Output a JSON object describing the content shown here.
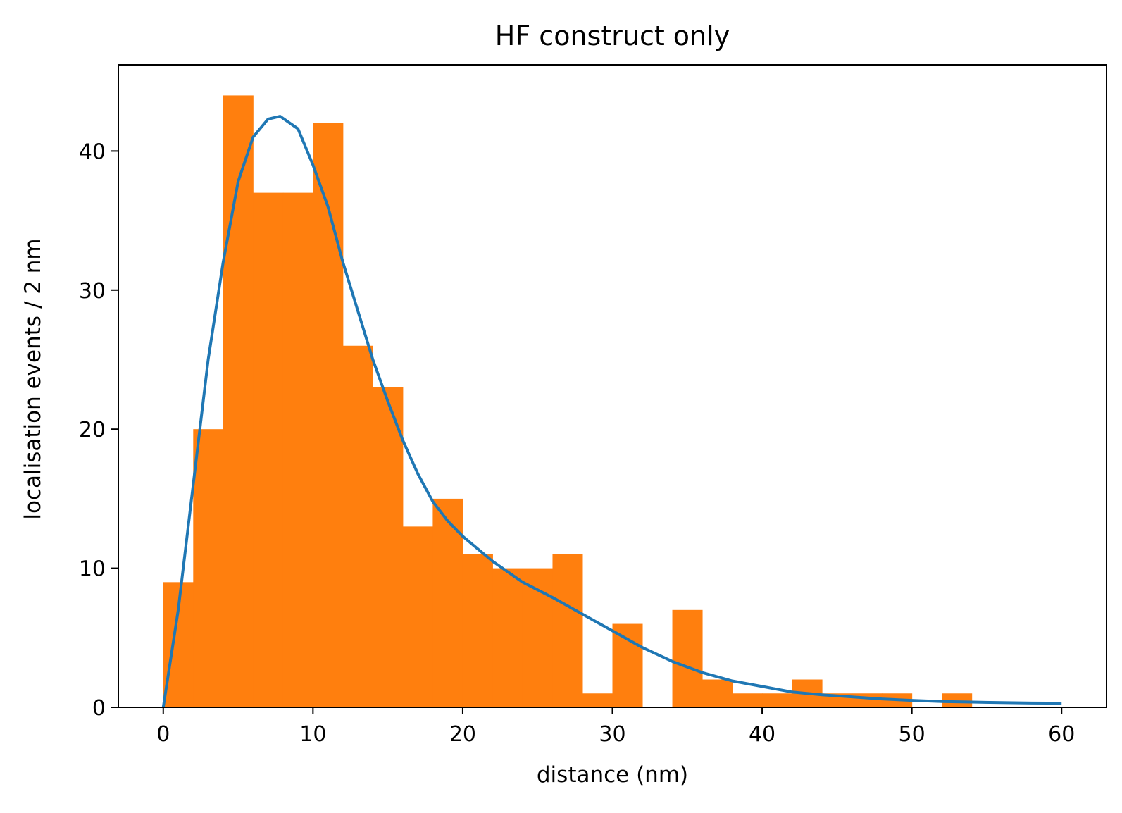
{
  "chart_data": {
    "type": "bar",
    "title": "HF construct only",
    "xlabel": "distance (nm)",
    "ylabel": "localisation events / 2 nm",
    "xlim": [
      -3,
      63
    ],
    "ylim": [
      0,
      46.2
    ],
    "xticks": [
      0,
      10,
      20,
      30,
      40,
      50,
      60
    ],
    "yticks": [
      0,
      10,
      20,
      30,
      40
    ],
    "bar_color": "#ff7f0e",
    "line_color": "#1f77b4",
    "bin_width": 2,
    "bins": [
      {
        "x0": 0,
        "value": 9
      },
      {
        "x0": 2,
        "value": 20
      },
      {
        "x0": 4,
        "value": 44
      },
      {
        "x0": 6,
        "value": 37
      },
      {
        "x0": 8,
        "value": 37
      },
      {
        "x0": 10,
        "value": 42
      },
      {
        "x0": 12,
        "value": 26
      },
      {
        "x0": 14,
        "value": 23
      },
      {
        "x0": 16,
        "value": 13
      },
      {
        "x0": 18,
        "value": 15
      },
      {
        "x0": 20,
        "value": 11
      },
      {
        "x0": 22,
        "value": 10
      },
      {
        "x0": 24,
        "value": 10
      },
      {
        "x0": 26,
        "value": 11
      },
      {
        "x0": 28,
        "value": 1
      },
      {
        "x0": 30,
        "value": 6
      },
      {
        "x0": 32,
        "value": 0
      },
      {
        "x0": 34,
        "value": 7
      },
      {
        "x0": 36,
        "value": 2
      },
      {
        "x0": 38,
        "value": 1
      },
      {
        "x0": 40,
        "value": 1
      },
      {
        "x0": 42,
        "value": 2
      },
      {
        "x0": 44,
        "value": 1
      },
      {
        "x0": 46,
        "value": 1
      },
      {
        "x0": 48,
        "value": 1
      },
      {
        "x0": 50,
        "value": 0
      },
      {
        "x0": 52,
        "value": 1
      }
    ],
    "fit_curve": {
      "x": [
        0,
        1,
        2,
        3,
        4,
        5,
        6,
        7,
        7.8,
        9,
        10,
        11,
        12,
        13,
        14,
        15,
        16,
        17,
        18,
        19,
        20,
        22,
        24,
        26,
        28,
        30,
        32,
        34,
        36,
        38,
        40,
        42,
        44,
        46,
        48,
        50,
        52,
        54,
        56,
        58,
        60
      ],
      "y": [
        0,
        7,
        16,
        25,
        32,
        37.8,
        41,
        42.3,
        42.5,
        41.6,
        39,
        36,
        32,
        28.5,
        25,
        22,
        19.2,
        16.8,
        14.8,
        13.4,
        12.3,
        10.5,
        9,
        7.9,
        6.7,
        5.5,
        4.3,
        3.3,
        2.5,
        1.9,
        1.5,
        1.1,
        0.9,
        0.75,
        0.6,
        0.5,
        0.42,
        0.38,
        0.34,
        0.31,
        0.3
      ]
    }
  }
}
